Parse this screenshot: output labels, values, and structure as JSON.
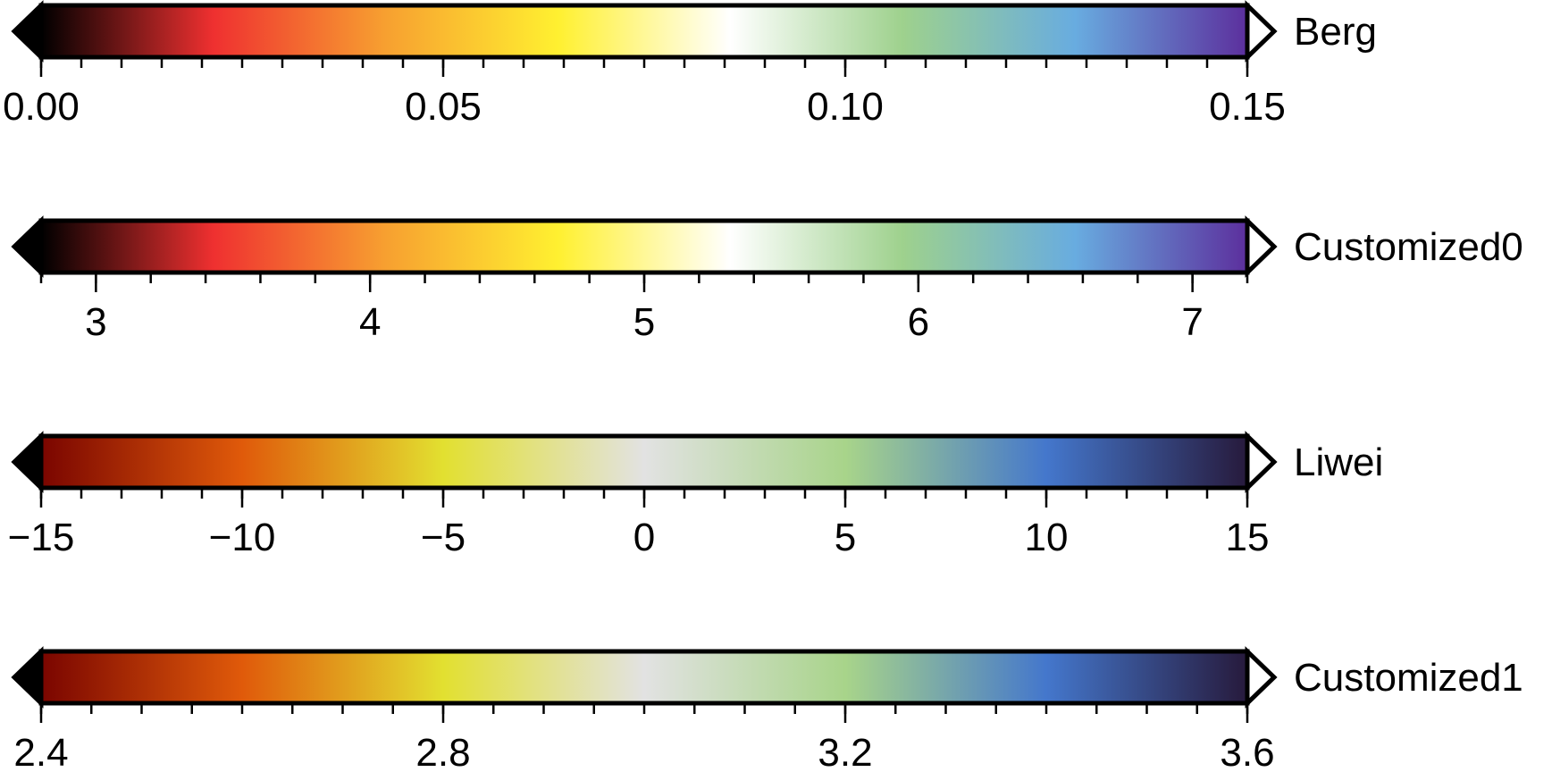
{
  "chart_data": [
    {
      "type": "colorbar",
      "name": "Berg",
      "range": [
        0.0,
        0.15
      ],
      "ticks": [
        "0.00",
        "0.05",
        "0.10",
        "0.15"
      ],
      "tick_values": [
        0.0,
        0.05,
        0.1,
        0.15
      ],
      "minor_step": 0.005,
      "low_extension_color": "#000000",
      "high_extension_color": "#ffffff",
      "colors": [
        "#000000",
        "#ef3030",
        "#f7a030",
        "#fff030",
        "#ffffff",
        "#9ed18d",
        "#68ace0",
        "#5c2f9d"
      ]
    },
    {
      "type": "colorbar",
      "name": "Customized0",
      "range": [
        2.8,
        7.2
      ],
      "ticks": [
        "3",
        "4",
        "5",
        "6",
        "7"
      ],
      "tick_values": [
        3,
        4,
        5,
        6,
        7
      ],
      "minor_step": 0.2,
      "low_extension_color": "#000000",
      "high_extension_color": "#ffffff",
      "colors": [
        "#000000",
        "#ef3030",
        "#f7a030",
        "#fff030",
        "#ffffff",
        "#9ed18d",
        "#68ace0",
        "#5c2f9d"
      ]
    },
    {
      "type": "colorbar",
      "name": "Liwei",
      "range": [
        -15,
        15
      ],
      "ticks": [
        "−15",
        "−10",
        "−5",
        "0",
        "5",
        "10",
        "15"
      ],
      "tick_values": [
        -15,
        -10,
        -5,
        0,
        5,
        10,
        15
      ],
      "minor_step": 1,
      "low_extension_color": "#000000",
      "high_extension_color": "#ffffff",
      "colors": [
        "#7a0500",
        "#e05a0a",
        "#e2e030",
        "#e2e2e2",
        "#a8d48a",
        "#4477cc",
        "#271a3c"
      ]
    },
    {
      "type": "colorbar",
      "name": "Customized1",
      "range": [
        2.4,
        3.6
      ],
      "ticks": [
        "2.4",
        "2.8",
        "3.2",
        "3.6"
      ],
      "tick_values": [
        2.4,
        2.8,
        3.2,
        3.6
      ],
      "minor_step": 0.05,
      "low_extension_color": "#000000",
      "high_extension_color": "#ffffff",
      "colors": [
        "#7a0500",
        "#e05a0a",
        "#e2e030",
        "#e2e2e2",
        "#a8d48a",
        "#4477cc",
        "#271a3c"
      ]
    }
  ]
}
